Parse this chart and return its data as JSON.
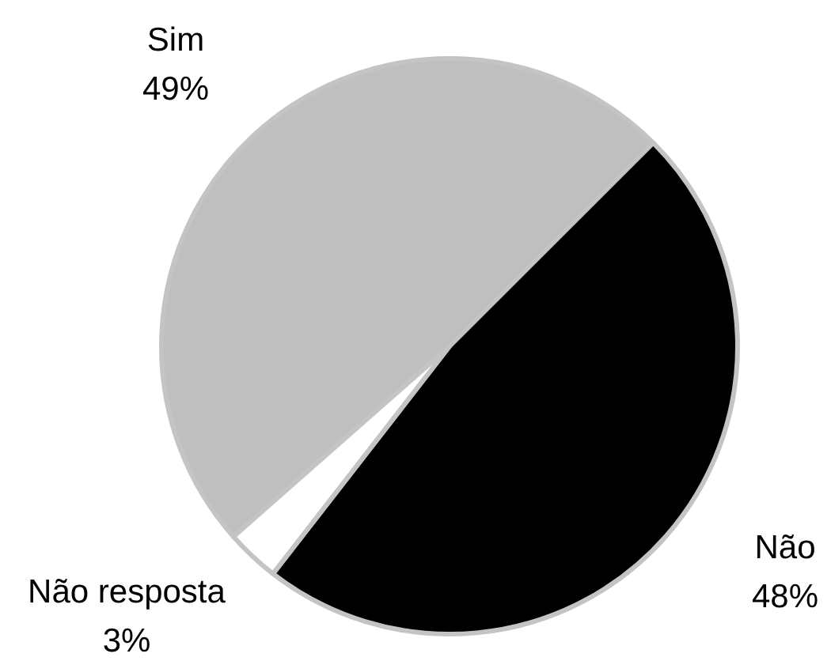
{
  "chart_data": {
    "type": "pie",
    "categories": [
      "Sim",
      "Não",
      "Não resposta"
    ],
    "values": [
      49,
      48,
      3
    ],
    "colors": [
      "#bfbfbf",
      "#000000",
      "#ffffff"
    ],
    "value_labels": [
      "49%",
      "48%",
      "3%"
    ]
  }
}
